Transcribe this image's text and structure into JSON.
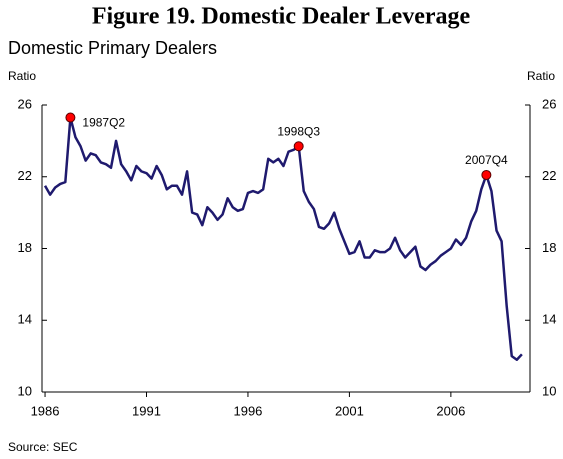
{
  "chart_data": {
    "type": "line",
    "title": "Figure 19. Domestic Dealer Leverage",
    "subtitle": "Domestic Primary Dealers",
    "y_label": "Ratio",
    "y2_label": "Ratio",
    "source": "Source: SEC",
    "x": [
      1986,
      1986.25,
      1986.5,
      1986.75,
      1987,
      1987.25,
      1987.5,
      1987.75,
      1988,
      1988.25,
      1988.5,
      1988.75,
      1989,
      1989.25,
      1989.5,
      1989.75,
      1990,
      1990.25,
      1990.5,
      1990.75,
      1991,
      1991.25,
      1991.5,
      1991.75,
      1992,
      1992.25,
      1992.5,
      1992.75,
      1993,
      1993.25,
      1993.5,
      1993.75,
      1994,
      1994.25,
      1994.5,
      1994.75,
      1995,
      1995.25,
      1995.5,
      1995.75,
      1996,
      1996.25,
      1996.5,
      1996.75,
      1997,
      1997.25,
      1997.5,
      1997.75,
      1998,
      1998.25,
      1998.5,
      1998.75,
      1999,
      1999.25,
      1999.5,
      1999.75,
      2000,
      2000.25,
      2000.5,
      2000.75,
      2001,
      2001.25,
      2001.5,
      2001.75,
      2002,
      2002.25,
      2002.5,
      2002.75,
      2003,
      2003.25,
      2003.5,
      2003.75,
      2004,
      2004.25,
      2004.5,
      2004.75,
      2005,
      2005.25,
      2005.5,
      2005.75,
      2006,
      2006.25,
      2006.5,
      2006.75,
      2007,
      2007.25,
      2007.5,
      2007.75,
      2008,
      2008.25,
      2008.5,
      2008.75,
      2009,
      2009.25,
      2009.5
    ],
    "series": [
      {
        "name": "Domestic Primary Dealers",
        "color": "#1f1a6e",
        "values": [
          21.5,
          21.0,
          21.4,
          21.6,
          21.7,
          25.3,
          24.2,
          23.7,
          22.9,
          23.3,
          23.2,
          22.8,
          22.7,
          22.5,
          24.0,
          22.7,
          22.3,
          21.8,
          22.6,
          22.3,
          22.2,
          21.9,
          22.6,
          22.1,
          21.3,
          21.5,
          21.5,
          21.0,
          22.3,
          20.0,
          19.9,
          19.3,
          20.3,
          20.0,
          19.6,
          19.9,
          20.8,
          20.3,
          20.1,
          20.2,
          21.1,
          21.2,
          21.1,
          21.3,
          23.0,
          22.8,
          23.0,
          22.6,
          23.4,
          23.5,
          23.7,
          21.2,
          20.6,
          20.2,
          19.2,
          19.1,
          19.4,
          20.0,
          19.1,
          18.4,
          17.7,
          17.8,
          18.4,
          17.5,
          17.5,
          17.9,
          17.8,
          17.8,
          18.0,
          18.6,
          17.9,
          17.5,
          17.8,
          18.1,
          17.0,
          16.8,
          17.1,
          17.3,
          17.6,
          17.8,
          18.0,
          18.5,
          18.2,
          18.6,
          19.5,
          20.1,
          21.3,
          22.1,
          21.2,
          19.0,
          18.4,
          14.8,
          12.0,
          11.8,
          12.1
        ]
      }
    ],
    "annotations": [
      {
        "label": "1987Q2",
        "x": 1987.25,
        "y": 25.3
      },
      {
        "label": "1998Q3",
        "x": 1998.5,
        "y": 23.7
      },
      {
        "label": "2007Q4",
        "x": 2007.75,
        "y": 22.1
      }
    ],
    "marker_color": "#ff0000",
    "xlim": [
      1985.85,
      2009.9
    ],
    "xticks": [
      1986,
      1991,
      1996,
      2001,
      2006
    ],
    "ylim": [
      10,
      26
    ],
    "yticks": [
      10,
      14,
      18,
      22,
      26
    ],
    "y2lim": [
      10,
      26
    ],
    "y2ticks": [
      10,
      14,
      18,
      22,
      26
    ],
    "grid": false
  }
}
